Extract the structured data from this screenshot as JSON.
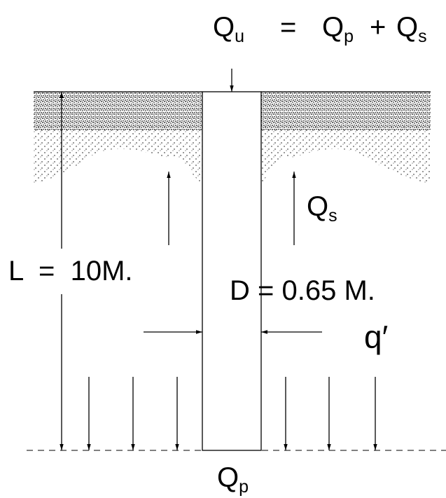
{
  "top_load": {
    "symbol": "Q",
    "subscript": "u"
  },
  "operator_eq": "=",
  "term1": {
    "symbol": "Q",
    "subscript": "p"
  },
  "operator_plus": "+",
  "term2": {
    "symbol": "Q",
    "subscript": "s"
  },
  "length_label": "L  =  10M.",
  "diameter_label": "D = 0.65 M.",
  "shaft_friction": {
    "symbol": "Q",
    "subscript": "s"
  },
  "overburden": "q′",
  "tip_load": {
    "symbol": "Q",
    "subscript": "p"
  }
}
